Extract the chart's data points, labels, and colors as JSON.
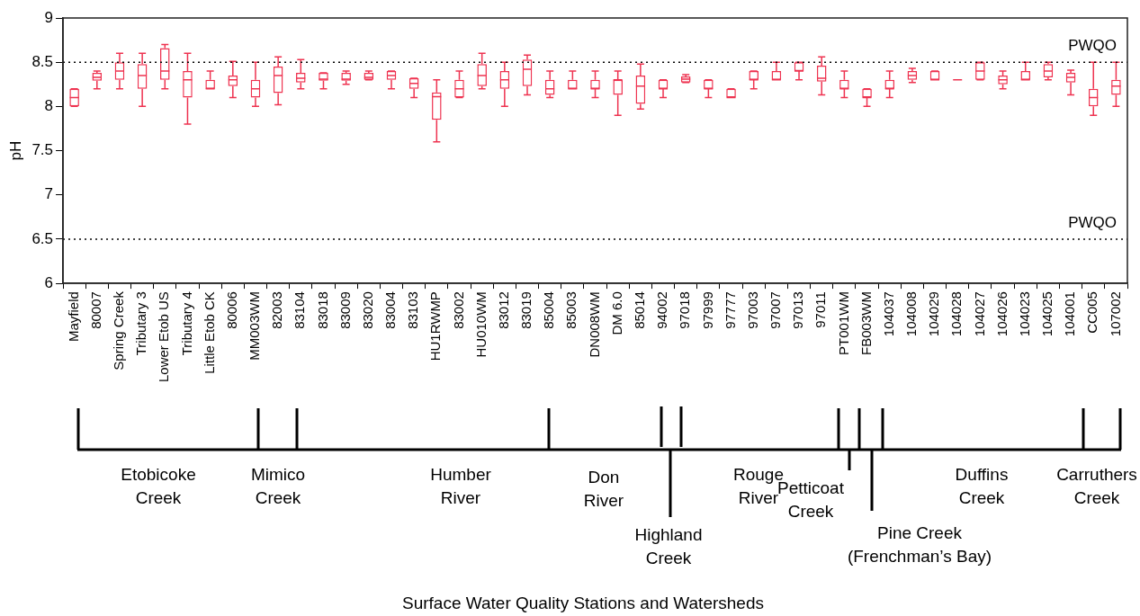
{
  "chart_data": {
    "type": "box",
    "ylabel": "pH",
    "categories": [
      "Mayfield",
      "80007",
      "Spring Creek",
      "Tributary 3",
      "Lower Etob US",
      "Tributary 4",
      "Little Etob CK",
      "80006",
      "MM003WM",
      "82003",
      "83104",
      "83018",
      "83009",
      "83020",
      "83004",
      "83103",
      "HU1RWMP",
      "83002",
      "HU010WM",
      "83012",
      "83019",
      "85004",
      "85003",
      "DN008WM",
      "DM 6.0",
      "85014",
      "94002",
      "97018",
      "97999",
      "97777",
      "97003",
      "97007",
      "97013",
      "97011",
      "PT001WM",
      "FB003WM",
      "104037",
      "104008",
      "104029",
      "104028",
      "104027",
      "104026",
      "104023",
      "104025",
      "104001",
      "CC005",
      "107002"
    ],
    "boxes": [
      {
        "low": 8.0,
        "q1": 8.0,
        "median": 8.1,
        "q3": 8.2,
        "high": 8.2
      },
      {
        "low": 8.2,
        "q1": 8.29,
        "median": 8.33,
        "q3": 8.38,
        "high": 8.4
      },
      {
        "low": 8.2,
        "q1": 8.3,
        "median": 8.4,
        "q3": 8.5,
        "high": 8.6
      },
      {
        "low": 8.0,
        "q1": 8.2,
        "median": 8.35,
        "q3": 8.48,
        "high": 8.6
      },
      {
        "low": 8.2,
        "q1": 8.3,
        "median": 8.4,
        "q3": 8.66,
        "high": 8.7
      },
      {
        "low": 7.8,
        "q1": 8.1,
        "median": 8.3,
        "q3": 8.4,
        "high": 8.6
      },
      {
        "low": 8.2,
        "q1": 8.2,
        "median": 8.2,
        "q3": 8.3,
        "high": 8.4
      },
      {
        "low": 8.1,
        "q1": 8.23,
        "median": 8.3,
        "q3": 8.35,
        "high": 8.51
      },
      {
        "low": 8.0,
        "q1": 8.1,
        "median": 8.2,
        "q3": 8.3,
        "high": 8.5
      },
      {
        "low": 8.02,
        "q1": 8.15,
        "median": 8.35,
        "q3": 8.45,
        "high": 8.56
      },
      {
        "low": 8.2,
        "q1": 8.27,
        "median": 8.32,
        "q3": 8.38,
        "high": 8.53
      },
      {
        "low": 8.2,
        "q1": 8.29,
        "median": 8.31,
        "q3": 8.38,
        "high": 8.38
      },
      {
        "low": 8.25,
        "q1": 8.29,
        "median": 8.31,
        "q3": 8.38,
        "high": 8.4
      },
      {
        "low": 8.3,
        "q1": 8.3,
        "median": 8.33,
        "q3": 8.38,
        "high": 8.4
      },
      {
        "low": 8.2,
        "q1": 8.3,
        "median": 8.35,
        "q3": 8.4,
        "high": 8.4
      },
      {
        "low": 8.1,
        "q1": 8.2,
        "median": 8.26,
        "q3": 8.32,
        "high": 8.32
      },
      {
        "low": 7.6,
        "q1": 7.85,
        "median": 8.11,
        "q3": 8.16,
        "high": 8.3
      },
      {
        "low": 8.1,
        "q1": 8.1,
        "median": 8.2,
        "q3": 8.3,
        "high": 8.4
      },
      {
        "low": 8.2,
        "q1": 8.23,
        "median": 8.35,
        "q3": 8.48,
        "high": 8.6
      },
      {
        "low": 8.0,
        "q1": 8.2,
        "median": 8.3,
        "q3": 8.4,
        "high": 8.5
      },
      {
        "low": 8.13,
        "q1": 8.23,
        "median": 8.42,
        "q3": 8.53,
        "high": 8.58
      },
      {
        "low": 8.1,
        "q1": 8.13,
        "median": 8.2,
        "q3": 8.3,
        "high": 8.4
      },
      {
        "low": 8.2,
        "q1": 8.2,
        "median": 8.2,
        "q3": 8.3,
        "high": 8.4
      },
      {
        "low": 8.1,
        "q1": 8.2,
        "median": 8.2,
        "q3": 8.3,
        "high": 8.4
      },
      {
        "low": 7.9,
        "q1": 8.13,
        "median": 8.3,
        "q3": 8.3,
        "high": 8.4
      },
      {
        "low": 7.97,
        "q1": 8.03,
        "median": 8.23,
        "q3": 8.35,
        "high": 8.48
      },
      {
        "low": 8.1,
        "q1": 8.2,
        "median": 8.2,
        "q3": 8.3,
        "high": 8.3
      },
      {
        "low": 8.27,
        "q1": 8.27,
        "median": 8.31,
        "q3": 8.34,
        "high": 8.36
      },
      {
        "low": 8.1,
        "q1": 8.2,
        "median": 8.2,
        "q3": 8.3,
        "high": 8.3
      },
      {
        "low": 8.1,
        "q1": 8.1,
        "median": 8.1,
        "q3": 8.2,
        "high": 8.2
      },
      {
        "low": 8.2,
        "q1": 8.3,
        "median": 8.3,
        "q3": 8.4,
        "high": 8.4
      },
      {
        "low": 8.3,
        "q1": 8.3,
        "median": 8.3,
        "q3": 8.4,
        "high": 8.5
      },
      {
        "low": 8.3,
        "q1": 8.4,
        "median": 8.4,
        "q3": 8.5,
        "high": 8.5
      },
      {
        "low": 8.13,
        "q1": 8.28,
        "median": 8.32,
        "q3": 8.46,
        "high": 8.56
      },
      {
        "low": 8.1,
        "q1": 8.2,
        "median": 8.2,
        "q3": 8.3,
        "high": 8.4
      },
      {
        "low": 8.0,
        "q1": 8.1,
        "median": 8.1,
        "q3": 8.2,
        "high": 8.2
      },
      {
        "low": 8.1,
        "q1": 8.2,
        "median": 8.2,
        "q3": 8.3,
        "high": 8.4
      },
      {
        "low": 8.27,
        "q1": 8.3,
        "median": 8.35,
        "q3": 8.4,
        "high": 8.43
      },
      {
        "low": 8.3,
        "q1": 8.3,
        "median": 8.3,
        "q3": 8.4,
        "high": 8.4
      },
      {
        "low": 8.3,
        "q1": 8.3,
        "median": 8.3,
        "q3": 8.3,
        "high": 8.3
      },
      {
        "low": 8.3,
        "q1": 8.3,
        "median": 8.4,
        "q3": 8.5,
        "high": 8.5
      },
      {
        "low": 8.2,
        "q1": 8.25,
        "median": 8.3,
        "q3": 8.35,
        "high": 8.4
      },
      {
        "low": 8.3,
        "q1": 8.3,
        "median": 8.3,
        "q3": 8.4,
        "high": 8.5
      },
      {
        "low": 8.3,
        "q1": 8.33,
        "median": 8.4,
        "q3": 8.48,
        "high": 8.5
      },
      {
        "low": 8.13,
        "q1": 8.27,
        "median": 8.33,
        "q3": 8.38,
        "high": 8.41
      },
      {
        "low": 7.9,
        "q1": 8.0,
        "median": 8.1,
        "q3": 8.2,
        "high": 8.5
      },
      {
        "low": 8.0,
        "q1": 8.13,
        "median": 8.23,
        "q3": 8.3,
        "high": 8.5
      }
    ],
    "color": "#ee3350",
    "ylim": [
      6,
      9
    ],
    "yticks": [
      6,
      6.5,
      7,
      7.5,
      8,
      8.5,
      9
    ],
    "ref_lines": [
      {
        "axis": "y",
        "value": 8.5,
        "label": "PWQO",
        "color": "#000000",
        "line_style": "dotted"
      },
      {
        "axis": "y",
        "value": 6.5,
        "label": "PWQO",
        "color": "#000000",
        "line_style": "dotted"
      }
    ],
    "annotations": [
      "Etobicoke Creek",
      "Mimico Creek",
      "Humber River",
      "Don River",
      "Highland Creek",
      "Rouge River",
      "Petticoat Creek",
      "Pine Creek (Frenchman’s Bay)",
      "Duffins Creek",
      "Carruthers Creek",
      "Surface Water Quality Stations and Watersheds"
    ],
    "grid": false,
    "legend": false
  }
}
